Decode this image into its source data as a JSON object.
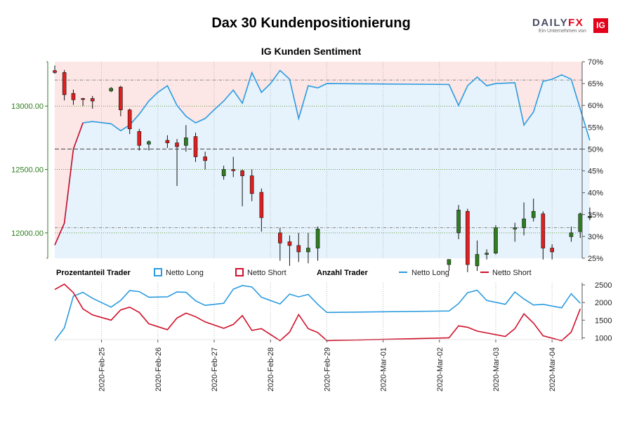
{
  "title": "Dax 30 Kundenpositionierung",
  "subtitle": "IG Kunden Sentiment",
  "brand": {
    "name_part1": "DAILY",
    "name_part2": "FX",
    "tagline": "Ein Unternehmen von",
    "ig": "IG"
  },
  "legend": {
    "pct_header": "Prozentanteil Trader",
    "pct_long": "Netto Long",
    "pct_short": "Netto Short",
    "count_header": "Anzahl Trader",
    "count_long": "Netto Long",
    "count_short": "Netto Short"
  },
  "colors": {
    "long": "#2a9be0",
    "short": "#d0102a",
    "up_candle": "#2e7d1e",
    "down_candle": "#e02020",
    "long_fill": "#e6f3fc",
    "short_fill": "#fce6e6",
    "price_axis": "#2e7d1e",
    "pct_axis": "#222222"
  },
  "chart_data": [
    {
      "type": "candlestick",
      "price_axis_ticks": [
        "12000.00",
        "12500.00",
        "13000.00"
      ],
      "price_range": [
        11800,
        13350
      ],
      "percent_axis_ticks": [
        "25%",
        "30%",
        "35%",
        "40%",
        "45%",
        "50%",
        "55%",
        "60%",
        "65%",
        "70%"
      ],
      "percent_range": [
        25,
        70
      ],
      "x_tick_labels": [
        "2020-Feb-25",
        "2020-Feb-26",
        "2020-Feb-27",
        "2020-Feb-28",
        "2020-Feb-29",
        "2020-Mar-01",
        "2020-Mar-02",
        "2020-Mar-03",
        "2020-Mar-04"
      ],
      "reference_lines": [
        50
      ],
      "candles": [
        {
          "t": 0.0,
          "o": 13280,
          "h": 13320,
          "l": 13255,
          "c": 13265
        },
        {
          "t": 0.17,
          "o": 13265,
          "h": 13285,
          "l": 13045,
          "c": 13090
        },
        {
          "t": 0.33,
          "o": 13100,
          "h": 13130,
          "l": 13010,
          "c": 13050
        },
        {
          "t": 0.5,
          "o": 13060,
          "h": 13065,
          "l": 13000,
          "c": 13055
        },
        {
          "t": 0.67,
          "o": 13060,
          "h": 13080,
          "l": 12980,
          "c": 13040
        },
        {
          "t": 1.0,
          "o": 13120,
          "h": 13150,
          "l": 13110,
          "c": 13140
        },
        {
          "t": 1.17,
          "o": 13150,
          "h": 13160,
          "l": 12920,
          "c": 12970
        },
        {
          "t": 1.33,
          "o": 12970,
          "h": 12980,
          "l": 12780,
          "c": 12820
        },
        {
          "t": 1.5,
          "o": 12800,
          "h": 12820,
          "l": 12650,
          "c": 12690
        },
        {
          "t": 1.67,
          "o": 12700,
          "h": 12730,
          "l": 12650,
          "c": 12720
        },
        {
          "t": 2.0,
          "o": 12730,
          "h": 12770,
          "l": 12670,
          "c": 12710
        },
        {
          "t": 2.17,
          "o": 12710,
          "h": 12740,
          "l": 12370,
          "c": 12680
        },
        {
          "t": 2.33,
          "o": 12690,
          "h": 12850,
          "l": 12640,
          "c": 12750
        },
        {
          "t": 2.5,
          "o": 12760,
          "h": 12790,
          "l": 12560,
          "c": 12600
        },
        {
          "t": 2.67,
          "o": 12600,
          "h": 12640,
          "l": 12500,
          "c": 12570
        },
        {
          "t": 3.0,
          "o": 12450,
          "h": 12530,
          "l": 12420,
          "c": 12500
        },
        {
          "t": 3.17,
          "o": 12500,
          "h": 12600,
          "l": 12440,
          "c": 12490
        },
        {
          "t": 3.33,
          "o": 12490,
          "h": 12500,
          "l": 12210,
          "c": 12450
        },
        {
          "t": 3.5,
          "o": 12450,
          "h": 12500,
          "l": 12250,
          "c": 12310
        },
        {
          "t": 3.67,
          "o": 12320,
          "h": 12350,
          "l": 12010,
          "c": 12120
        },
        {
          "t": 4.0,
          "o": 12000,
          "h": 12040,
          "l": 11780,
          "c": 11920
        },
        {
          "t": 4.17,
          "o": 11930,
          "h": 11980,
          "l": 11740,
          "c": 11900
        },
        {
          "t": 4.33,
          "o": 11900,
          "h": 12000,
          "l": 11770,
          "c": 11850
        },
        {
          "t": 4.5,
          "o": 11850,
          "h": 12000,
          "l": 11760,
          "c": 11880
        },
        {
          "t": 4.67,
          "o": 11880,
          "h": 12050,
          "l": 11780,
          "c": 12030
        },
        {
          "t": 7.0,
          "o": 11750,
          "h": 11790,
          "l": 11700,
          "c": 11790
        },
        {
          "t": 7.17,
          "o": 12000,
          "h": 12220,
          "l": 11950,
          "c": 12180
        },
        {
          "t": 7.33,
          "o": 12170,
          "h": 12190,
          "l": 11690,
          "c": 11750
        },
        {
          "t": 7.5,
          "o": 11740,
          "h": 11940,
          "l": 11700,
          "c": 11830
        },
        {
          "t": 7.67,
          "o": 11830,
          "h": 11870,
          "l": 11790,
          "c": 11840
        },
        {
          "t": 7.83,
          "o": 11840,
          "h": 12060,
          "l": 11830,
          "c": 12040
        },
        {
          "t": 8.17,
          "o": 12030,
          "h": 12080,
          "l": 11930,
          "c": 12040
        },
        {
          "t": 8.33,
          "o": 12040,
          "h": 12240,
          "l": 11980,
          "c": 12110
        },
        {
          "t": 8.5,
          "o": 12120,
          "h": 12270,
          "l": 12090,
          "c": 12170
        },
        {
          "t": 8.67,
          "o": 12150,
          "h": 12170,
          "l": 11790,
          "c": 11880
        },
        {
          "t": 8.83,
          "o": 11880,
          "h": 11910,
          "l": 11790,
          "c": 11850
        },
        {
          "t": 9.17,
          "o": 11970,
          "h": 12050,
          "l": 11930,
          "c": 12000
        },
        {
          "t": 9.33,
          "o": 12010,
          "h": 12160,
          "l": 11960,
          "c": 12150
        },
        {
          "t": 9.5,
          "o": 12120,
          "h": 12200,
          "l": 12100,
          "c": 12130
        }
      ],
      "long_percent": [
        {
          "t": 0.0,
          "v": 28
        },
        {
          "t": 0.17,
          "v": 33
        },
        {
          "t": 0.33,
          "v": 50
        },
        {
          "t": 0.5,
          "v": 56
        },
        {
          "t": 0.67,
          "v": 56.3
        },
        {
          "t": 1.0,
          "v": 55.8
        },
        {
          "t": 1.17,
          "v": 54.2
        },
        {
          "t": 1.33,
          "v": 55.5
        },
        {
          "t": 1.5,
          "v": 58
        },
        {
          "t": 1.67,
          "v": 61
        },
        {
          "t": 1.83,
          "v": 63
        },
        {
          "t": 2.0,
          "v": 64.5
        },
        {
          "t": 2.17,
          "v": 60
        },
        {
          "t": 2.33,
          "v": 57.5
        },
        {
          "t": 2.5,
          "v": 56
        },
        {
          "t": 2.67,
          "v": 57
        },
        {
          "t": 2.83,
          "v": 59
        },
        {
          "t": 3.0,
          "v": 61
        },
        {
          "t": 3.17,
          "v": 63.5
        },
        {
          "t": 3.33,
          "v": 60.5
        },
        {
          "t": 3.5,
          "v": 67.5
        },
        {
          "t": 3.67,
          "v": 63
        },
        {
          "t": 3.83,
          "v": 65
        },
        {
          "t": 4.0,
          "v": 68
        },
        {
          "t": 4.17,
          "v": 66
        },
        {
          "t": 4.33,
          "v": 57
        },
        {
          "t": 4.5,
          "v": 64.5
        },
        {
          "t": 4.67,
          "v": 64
        },
        {
          "t": 4.83,
          "v": 65
        },
        {
          "t": 7.0,
          "v": 64.8
        },
        {
          "t": 7.17,
          "v": 60
        },
        {
          "t": 7.33,
          "v": 64.5
        },
        {
          "t": 7.5,
          "v": 66.5
        },
        {
          "t": 7.67,
          "v": 64.5
        },
        {
          "t": 7.83,
          "v": 65
        },
        {
          "t": 8.17,
          "v": 65.2
        },
        {
          "t": 8.33,
          "v": 55.5
        },
        {
          "t": 8.5,
          "v": 58.5
        },
        {
          "t": 8.67,
          "v": 65.5
        },
        {
          "t": 8.83,
          "v": 66
        },
        {
          "t": 9.0,
          "v": 67
        },
        {
          "t": 9.17,
          "v": 66
        },
        {
          "t": 9.5,
          "v": 52
        }
      ]
    },
    {
      "type": "line",
      "count_axis_ticks": [
        "1000",
        "1500",
        "2000",
        "2500"
      ],
      "count_range": [
        950,
        2560
      ],
      "x_tick_labels": [
        "2020-Feb-25",
        "2020-Feb-26",
        "2020-Feb-27",
        "2020-Feb-28",
        "2020-Feb-29",
        "2020-Mar-01",
        "2020-Mar-02",
        "2020-Mar-03",
        "2020-Mar-04"
      ],
      "series": [
        {
          "name": "Netto Long",
          "points": [
            {
              "t": 0.0,
              "v": 920
            },
            {
              "t": 0.17,
              "v": 1280
            },
            {
              "t": 0.33,
              "v": 2180
            },
            {
              "t": 0.5,
              "v": 2290
            },
            {
              "t": 0.67,
              "v": 2120
            },
            {
              "t": 1.0,
              "v": 1870
            },
            {
              "t": 1.17,
              "v": 2060
            },
            {
              "t": 1.33,
              "v": 2340
            },
            {
              "t": 1.5,
              "v": 2310
            },
            {
              "t": 1.67,
              "v": 2150
            },
            {
              "t": 2.0,
              "v": 2160
            },
            {
              "t": 2.17,
              "v": 2300
            },
            {
              "t": 2.33,
              "v": 2290
            },
            {
              "t": 2.5,
              "v": 2050
            },
            {
              "t": 2.67,
              "v": 1920
            },
            {
              "t": 3.0,
              "v": 1980
            },
            {
              "t": 3.17,
              "v": 2380
            },
            {
              "t": 3.33,
              "v": 2480
            },
            {
              "t": 3.5,
              "v": 2440
            },
            {
              "t": 3.67,
              "v": 2150
            },
            {
              "t": 4.0,
              "v": 1960
            },
            {
              "t": 4.17,
              "v": 2240
            },
            {
              "t": 4.33,
              "v": 2160
            },
            {
              "t": 4.5,
              "v": 2230
            },
            {
              "t": 4.67,
              "v": 1950
            },
            {
              "t": 4.83,
              "v": 1720
            },
            {
              "t": 7.0,
              "v": 1760
            },
            {
              "t": 7.17,
              "v": 1970
            },
            {
              "t": 7.33,
              "v": 2280
            },
            {
              "t": 7.5,
              "v": 2350
            },
            {
              "t": 7.67,
              "v": 2060
            },
            {
              "t": 8.0,
              "v": 1950
            },
            {
              "t": 8.17,
              "v": 2300
            },
            {
              "t": 8.33,
              "v": 2100
            },
            {
              "t": 8.5,
              "v": 1930
            },
            {
              "t": 8.67,
              "v": 1950
            },
            {
              "t": 8.83,
              "v": 1900
            },
            {
              "t": 9.0,
              "v": 1850
            },
            {
              "t": 9.17,
              "v": 2250
            },
            {
              "t": 9.33,
              "v": 1980
            }
          ]
        },
        {
          "name": "Netto Short",
          "points": [
            {
              "t": 0.0,
              "v": 2370
            },
            {
              "t": 0.17,
              "v": 2520
            },
            {
              "t": 0.33,
              "v": 2280
            },
            {
              "t": 0.5,
              "v": 1820
            },
            {
              "t": 0.67,
              "v": 1650
            },
            {
              "t": 1.0,
              "v": 1500
            },
            {
              "t": 1.17,
              "v": 1790
            },
            {
              "t": 1.33,
              "v": 1870
            },
            {
              "t": 1.5,
              "v": 1720
            },
            {
              "t": 1.67,
              "v": 1400
            },
            {
              "t": 2.0,
              "v": 1230
            },
            {
              "t": 2.17,
              "v": 1560
            },
            {
              "t": 2.33,
              "v": 1700
            },
            {
              "t": 2.5,
              "v": 1600
            },
            {
              "t": 2.67,
              "v": 1450
            },
            {
              "t": 3.0,
              "v": 1270
            },
            {
              "t": 3.17,
              "v": 1380
            },
            {
              "t": 3.33,
              "v": 1630
            },
            {
              "t": 3.5,
              "v": 1210
            },
            {
              "t": 3.67,
              "v": 1260
            },
            {
              "t": 4.0,
              "v": 920
            },
            {
              "t": 4.17,
              "v": 1160
            },
            {
              "t": 4.33,
              "v": 1660
            },
            {
              "t": 4.5,
              "v": 1260
            },
            {
              "t": 4.67,
              "v": 1150
            },
            {
              "t": 4.83,
              "v": 920
            },
            {
              "t": 7.0,
              "v": 1000
            },
            {
              "t": 7.17,
              "v": 1340
            },
            {
              "t": 7.33,
              "v": 1300
            },
            {
              "t": 7.5,
              "v": 1190
            },
            {
              "t": 8.0,
              "v": 1040
            },
            {
              "t": 8.17,
              "v": 1260
            },
            {
              "t": 8.33,
              "v": 1680
            },
            {
              "t": 8.5,
              "v": 1420
            },
            {
              "t": 8.67,
              "v": 1060
            },
            {
              "t": 9.0,
              "v": 920
            },
            {
              "t": 9.17,
              "v": 1160
            },
            {
              "t": 9.33,
              "v": 1820
            }
          ]
        }
      ]
    }
  ]
}
